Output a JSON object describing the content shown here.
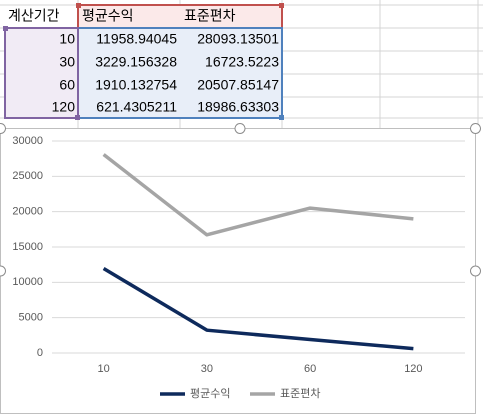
{
  "table": {
    "header": [
      "계산기간",
      "평균수익",
      "표준편차"
    ],
    "rows": [
      [
        "10",
        "11958.94045",
        "28093.13501"
      ],
      [
        "30",
        "3229.156328",
        "16723.5223"
      ],
      [
        "60",
        "1910.132754",
        "20507.85147"
      ],
      [
        "120",
        "621.4305211",
        "18986.63303"
      ]
    ]
  },
  "chart_data": {
    "type": "line",
    "categories": [
      "10",
      "30",
      "60",
      "120"
    ],
    "series": [
      {
        "name": "평균수익",
        "color": "#0e2a5c",
        "values": [
          11958.94045,
          3229.156328,
          1910.132754,
          621.4305211
        ]
      },
      {
        "name": "표준편차",
        "color": "#a5a5a5",
        "values": [
          28093.13501,
          16723.5223,
          20507.85147,
          18986.63303
        ]
      }
    ],
    "ylim": [
      0,
      30000
    ],
    "yticks": [
      0,
      5000,
      10000,
      15000,
      20000,
      25000,
      30000
    ],
    "grid": true,
    "legend": "bottom"
  }
}
